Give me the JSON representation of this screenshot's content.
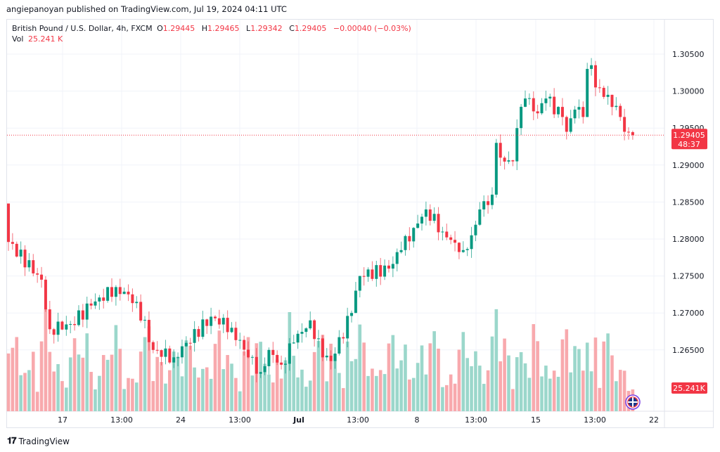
{
  "publisher_line": "angiepanoyan published on TradingView.com, Jul 19, 2024 04:11 UTC",
  "legend": {
    "symbol": "British Pound / U.S. Dollar, 4h, FXCM",
    "o_label": "O",
    "o": "1.29445",
    "h_label": "H",
    "h": "1.29465",
    "l_label": "L",
    "l": "1.29342",
    "c_label": "C",
    "c": "1.29405",
    "change": "−0.00040 (−0.03%)",
    "vol_label": "Vol",
    "vol": "25.241 K"
  },
  "price_tag": {
    "price": "1.29405",
    "countdown": "48:37"
  },
  "volume_tag": "25.241K",
  "footer_logo": "TradingView",
  "colors": {
    "up": "#089981",
    "down": "#f23645",
    "up_vol": "#9bd7cb",
    "down_vol": "#f8a9ad",
    "grid": "#f0f3fa"
  },
  "chart_data": {
    "type": "candlestick",
    "title": "British Pound / U.S. Dollar, 4h, FXCM",
    "ylim": [
      1.2585,
      1.3075
    ],
    "y_ticks": [
      "1.30500",
      "1.30000",
      "1.29500",
      "1.29000",
      "1.28500",
      "1.28000",
      "1.27500",
      "1.27000",
      "1.26500"
    ],
    "x_ticks": [
      "17",
      "13:00",
      "24",
      "13:00",
      "Jul",
      "13:00",
      "8",
      "13:00",
      "15",
      "13:00",
      "22"
    ],
    "first_open": 1.2848,
    "close_waypoints_by_candle_index": [
      [
        0,
        1.2796
      ],
      [
        8,
        1.2745
      ],
      [
        10,
        1.2678
      ],
      [
        15,
        1.2685
      ],
      [
        20,
        1.271
      ],
      [
        26,
        1.2735
      ],
      [
        31,
        1.2715
      ],
      [
        35,
        1.265
      ],
      [
        40,
        1.264
      ],
      [
        49,
        1.2695
      ],
      [
        54,
        1.268
      ],
      [
        58,
        1.264
      ],
      [
        61,
        1.262
      ],
      [
        63,
        1.265
      ],
      [
        66,
        1.263
      ],
      [
        69,
        1.266
      ],
      [
        73,
        1.269
      ],
      [
        76,
        1.264
      ],
      [
        78,
        1.2635
      ],
      [
        83,
        1.27
      ],
      [
        85,
        1.275
      ],
      [
        92,
        1.276
      ],
      [
        95,
        1.2785
      ],
      [
        98,
        1.2815
      ],
      [
        101,
        1.284
      ],
      [
        105,
        1.281
      ],
      [
        108,
        1.2795
      ],
      [
        110,
        1.2785
      ],
      [
        112,
        1.2805
      ],
      [
        114,
        1.284
      ],
      [
        117,
        1.286
      ],
      [
        118,
        1.293
      ],
      [
        119,
        1.291
      ],
      [
        122,
        1.2905
      ],
      [
        123,
        1.295
      ],
      [
        125,
        1.299
      ],
      [
        128,
        1.297
      ],
      [
        130,
        1.299
      ],
      [
        134,
        1.2965
      ],
      [
        135,
        1.2945
      ],
      [
        137,
        1.2975
      ],
      [
        139,
        1.2965
      ],
      [
        140,
        1.303
      ],
      [
        141,
        1.3035
      ],
      [
        142,
        1.3005
      ],
      [
        145,
        1.2995
      ],
      [
        147,
        1.298
      ],
      [
        148,
        1.2965
      ],
      [
        149,
        1.2945
      ],
      [
        150,
        1.29445
      ],
      [
        151,
        1.29405
      ]
    ],
    "last_candle": {
      "open": 1.29445,
      "high": 1.29465,
      "low": 1.29342,
      "close": 1.29405,
      "volume_k": 25.241
    }
  }
}
